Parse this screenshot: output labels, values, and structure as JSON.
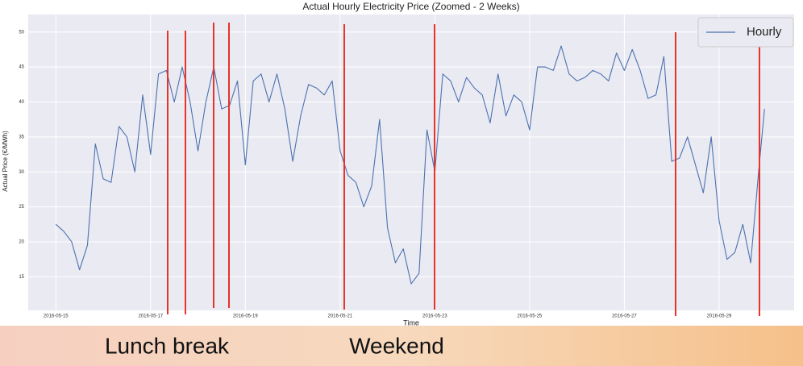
{
  "chart_data": {
    "type": "line",
    "title": "Actual Hourly Electricity Price (Zoomed - 2 Weeks)",
    "x_label": "Time",
    "y_label": "Actual Price (€/MWh)",
    "x": [
      "2016-05-15 00:00",
      "2016-05-15 04:00",
      "2016-05-15 08:00",
      "2016-05-15 12:00",
      "2016-05-15 16:00",
      "2016-05-15 20:00",
      "2016-05-16 00:00",
      "2016-05-16 04:00",
      "2016-05-16 08:00",
      "2016-05-16 12:00",
      "2016-05-16 16:00",
      "2016-05-16 20:00",
      "2016-05-17 00:00",
      "2016-05-17 04:00",
      "2016-05-17 08:00",
      "2016-05-17 12:00",
      "2016-05-17 16:00",
      "2016-05-17 20:00",
      "2016-05-18 00:00",
      "2016-05-18 04:00",
      "2016-05-18 08:00",
      "2016-05-18 12:00",
      "2016-05-18 16:00",
      "2016-05-18 20:00",
      "2016-05-19 00:00",
      "2016-05-19 04:00",
      "2016-05-19 08:00",
      "2016-05-19 12:00",
      "2016-05-19 16:00",
      "2016-05-19 20:00",
      "2016-05-20 00:00",
      "2016-05-20 04:00",
      "2016-05-20 08:00",
      "2016-05-20 12:00",
      "2016-05-20 16:00",
      "2016-05-20 20:00",
      "2016-05-21 00:00",
      "2016-05-21 04:00",
      "2016-05-21 08:00",
      "2016-05-21 12:00",
      "2016-05-21 16:00",
      "2016-05-21 20:00",
      "2016-05-22 00:00",
      "2016-05-22 04:00",
      "2016-05-22 08:00",
      "2016-05-22 12:00",
      "2016-05-22 16:00",
      "2016-05-22 20:00",
      "2016-05-23 00:00",
      "2016-05-23 04:00",
      "2016-05-23 08:00",
      "2016-05-23 12:00",
      "2016-05-23 16:00",
      "2016-05-23 20:00",
      "2016-05-24 00:00",
      "2016-05-24 04:00",
      "2016-05-24 08:00",
      "2016-05-24 12:00",
      "2016-05-24 16:00",
      "2016-05-24 20:00",
      "2016-05-25 00:00",
      "2016-05-25 04:00",
      "2016-05-25 08:00",
      "2016-05-25 12:00",
      "2016-05-25 16:00",
      "2016-05-25 20:00",
      "2016-05-26 00:00",
      "2016-05-26 04:00",
      "2016-05-26 08:00",
      "2016-05-26 12:00",
      "2016-05-26 16:00",
      "2016-05-26 20:00",
      "2016-05-27 00:00",
      "2016-05-27 04:00",
      "2016-05-27 08:00",
      "2016-05-27 12:00",
      "2016-05-27 16:00",
      "2016-05-27 20:00",
      "2016-05-28 00:00",
      "2016-05-28 04:00",
      "2016-05-28 08:00",
      "2016-05-28 12:00",
      "2016-05-28 16:00",
      "2016-05-28 20:00",
      "2016-05-29 00:00",
      "2016-05-29 04:00",
      "2016-05-29 08:00",
      "2016-05-29 12:00",
      "2016-05-29 16:00",
      "2016-05-29 20:00",
      "2016-05-29 23:00"
    ],
    "series": [
      {
        "name": "Hourly",
        "color": "#4c72b0",
        "values": [
          22.5,
          21.5,
          20,
          16,
          19.5,
          34,
          29,
          28.5,
          36.5,
          35,
          30,
          41,
          32.5,
          44,
          44.5,
          40,
          45,
          40,
          33,
          40,
          45,
          39,
          39.5,
          43,
          31,
          43,
          44,
          40,
          44,
          39,
          31.5,
          38,
          42.5,
          42,
          41,
          43,
          33,
          29.5,
          28.5,
          25,
          28,
          37.5,
          22,
          17,
          19,
          14,
          15.5,
          36,
          30,
          44,
          43,
          40,
          43.5,
          42,
          41,
          37,
          44,
          38,
          41,
          40,
          36,
          45,
          45,
          44.5,
          48,
          44,
          43,
          43.5,
          44.5,
          44,
          43,
          47,
          44.5,
          47.5,
          44.5,
          40.5,
          41,
          46.5,
          31.5,
          32,
          35,
          31,
          27,
          35,
          23,
          17.5,
          18.5,
          22.5,
          17,
          30,
          39
        ]
      }
    ],
    "xlim": [
      "2016-05-14 10:00",
      "2016-05-30 14:00"
    ],
    "xticks": [
      "2016-05-15",
      "2016-05-17",
      "2016-05-19",
      "2016-05-21",
      "2016-05-23",
      "2016-05-25",
      "2016-05-27",
      "2016-05-29"
    ],
    "ylim": [
      10.2,
      52.5
    ],
    "yticks": [
      15,
      20,
      25,
      30,
      35,
      40,
      45,
      50
    ],
    "grid": true,
    "legend": "upper right",
    "annotations": [
      "Lunch break",
      "Weekend"
    ]
  }
}
